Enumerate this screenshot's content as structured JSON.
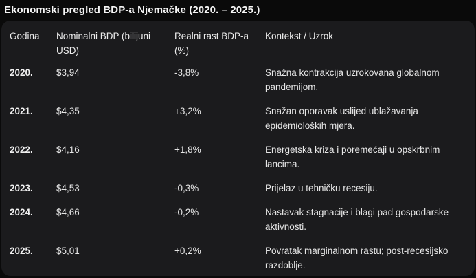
{
  "title": "Ekonomski pregled BDP-a Njemačke (2020. – 2025.)",
  "colors": {
    "page_background": "#0a0a0a",
    "card_background": "#1b1b1d",
    "text": "#e8e8e8",
    "title_text": "#f5f5f5"
  },
  "table": {
    "columns": [
      "Godina",
      "Nominalni BDP (bilijuni USD)",
      "Realni rast BDP-a (%)",
      "Kontekst / Uzrok"
    ],
    "rows": [
      {
        "godina": "2020.",
        "bdp": "$3,94",
        "rast": "-3,8%",
        "kontekst": "Snažna kontrakcija uzrokovana globalnom pandemijom."
      },
      {
        "godina": "2021.",
        "bdp": "$4,35",
        "rast": "+3,2%",
        "kontekst": "Snažan oporavak uslijed ublažavanja epidemioloških mjera."
      },
      {
        "godina": "2022.",
        "bdp": "$4,16",
        "rast": "+1,8%",
        "kontekst": "Energetska kriza i poremećaji u opskrbnim lancima."
      },
      {
        "godina": "2023.",
        "bdp": "$4,53",
        "rast": "-0,3%",
        "kontekst": "Prijelaz u tehničku recesiju."
      },
      {
        "godina": "2024.",
        "bdp": "$4,66",
        "rast": "-0,2%",
        "kontekst": "Nastavak stagnacije i blagi pad gospodarske aktivnosti."
      },
      {
        "godina": "2025.",
        "bdp": "$5,01",
        "rast": "+0,2%",
        "kontekst": "Povratak marginalnom rastu; post-recesijsko razdoblje."
      }
    ]
  }
}
